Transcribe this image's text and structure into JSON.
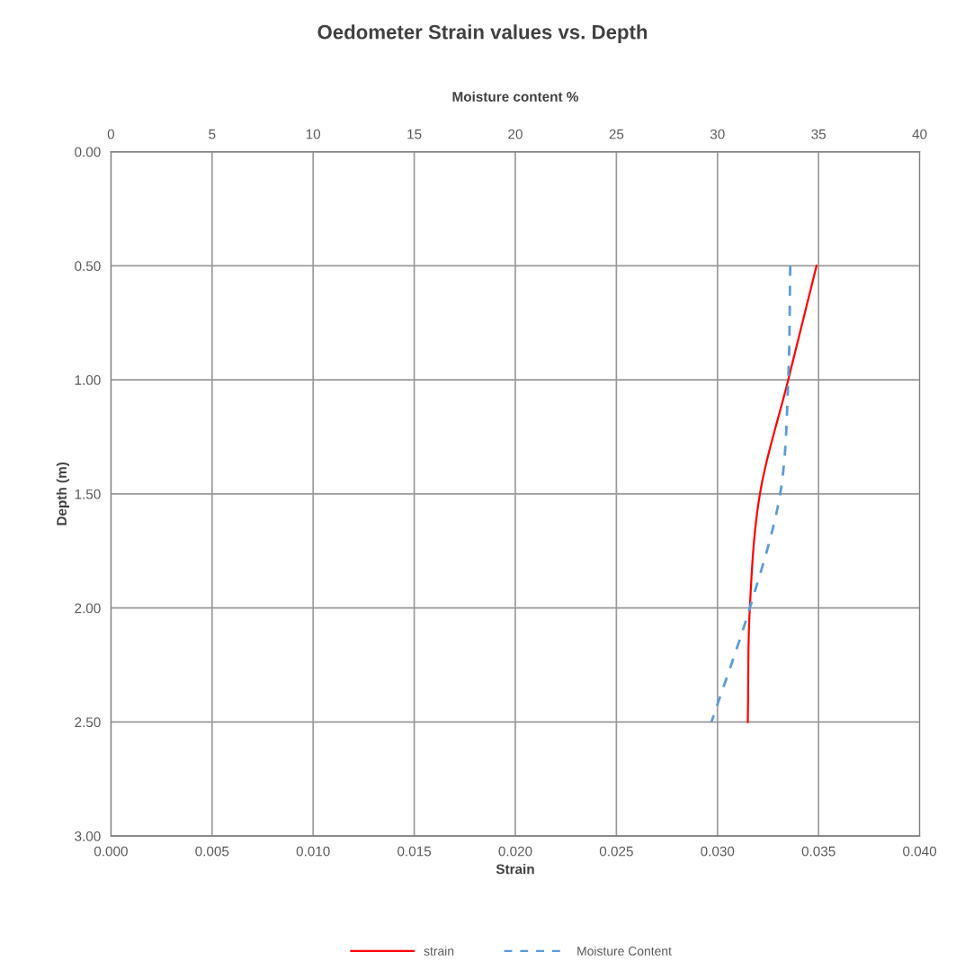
{
  "chart_data": {
    "type": "line",
    "title": "Oedometer Strain values vs. Depth",
    "xlabel": "Strain",
    "ylabel": "Depth (m)",
    "x2label": "Moisture content %",
    "series": [
      {
        "name": "strain",
        "color": "#ff0000",
        "line_style": "solid",
        "x": [
          0.0349,
          0.0335,
          0.0321,
          0.0316,
          0.0315
        ],
        "values": [
          0.5,
          1.0,
          1.5,
          2.0,
          2.5
        ]
      },
      {
        "name": "Moisture Content",
        "color": "#5b9bd5",
        "line_style": "dashed",
        "axis": "x2",
        "x": [
          33.6,
          33.5,
          33.1,
          31.6,
          29.7
        ],
        "values": [
          0.5,
          1.0,
          1.5,
          2.0,
          2.5
        ]
      }
    ],
    "xlim": [
      0,
      0.04
    ],
    "xticks": [
      {
        "value": 0,
        "label": "0.000"
      },
      {
        "value": 0.005,
        "label": "0.005"
      },
      {
        "value": 0.01,
        "label": "0.010"
      },
      {
        "value": 0.015,
        "label": "0.015"
      },
      {
        "value": 0.02,
        "label": "0.020"
      },
      {
        "value": 0.025,
        "label": "0.025"
      },
      {
        "value": 0.03,
        "label": "0.030"
      },
      {
        "value": 0.035,
        "label": "0.035"
      },
      {
        "value": 0.04,
        "label": "0.040"
      }
    ],
    "x2lim": [
      0,
      40
    ],
    "x2ticks": [
      0,
      5,
      10,
      15,
      20,
      25,
      30,
      35,
      40
    ],
    "ylim": [
      3,
      0
    ],
    "yticks": [
      {
        "value": 0,
        "label": "0.00"
      },
      {
        "value": 0.5,
        "label": "0.50"
      },
      {
        "value": 1,
        "label": "1.00"
      },
      {
        "value": 1.5,
        "label": "1.50"
      },
      {
        "value": 2,
        "label": "2.00"
      },
      {
        "value": 2.5,
        "label": "2.50"
      },
      {
        "value": 3,
        "label": "3.00"
      }
    ],
    "grid": true,
    "legend": "bottom",
    "marker": "none"
  }
}
